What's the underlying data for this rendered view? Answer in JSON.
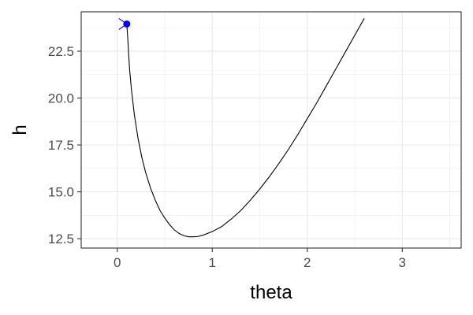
{
  "chart_data": {
    "type": "line",
    "title": "",
    "xlabel": "theta",
    "ylabel": "h",
    "xlim": [
      -0.38,
      3.62
    ],
    "ylim": [
      12.0,
      24.6
    ],
    "x_ticks": [
      0,
      1,
      2,
      3
    ],
    "x_tick_labels": [
      "0",
      "1",
      "2",
      "3"
    ],
    "y_ticks": [
      12.5,
      15.0,
      17.5,
      20.0,
      22.5
    ],
    "y_tick_labels": [
      "12.5",
      "15.0",
      "17.5",
      "20.0",
      "22.5"
    ],
    "grid": true,
    "theme": "bw",
    "series": [
      {
        "points": [
          [
            0.1,
            23.95
          ],
          [
            0.11,
            23.2
          ],
          [
            0.12,
            22.3
          ],
          [
            0.13,
            21.5
          ],
          [
            0.15,
            20.4
          ],
          [
            0.18,
            19.1
          ],
          [
            0.22,
            17.8
          ],
          [
            0.26,
            16.8
          ],
          [
            0.3,
            16.0
          ],
          [
            0.35,
            15.2
          ],
          [
            0.4,
            14.55
          ],
          [
            0.45,
            14.0
          ],
          [
            0.5,
            13.6
          ],
          [
            0.55,
            13.25
          ],
          [
            0.6,
            12.97
          ],
          [
            0.65,
            12.78
          ],
          [
            0.7,
            12.66
          ],
          [
            0.75,
            12.6
          ],
          [
            0.8,
            12.6
          ],
          [
            0.85,
            12.62
          ],
          [
            0.9,
            12.68
          ],
          [
            1.0,
            12.88
          ],
          [
            1.1,
            13.15
          ],
          [
            1.2,
            13.55
          ],
          [
            1.3,
            14.0
          ],
          [
            1.4,
            14.55
          ],
          [
            1.5,
            15.15
          ],
          [
            1.6,
            15.8
          ],
          [
            1.7,
            16.5
          ],
          [
            1.8,
            17.25
          ],
          [
            1.9,
            18.05
          ],
          [
            2.0,
            18.9
          ],
          [
            2.1,
            19.75
          ],
          [
            2.2,
            20.65
          ],
          [
            2.3,
            21.55
          ],
          [
            2.4,
            22.45
          ],
          [
            2.5,
            23.35
          ],
          [
            2.6,
            24.25
          ]
        ],
        "color": "#000000"
      }
    ],
    "marker": {
      "x": 0.1,
      "y": 23.95,
      "color": "#0000ff"
    }
  }
}
